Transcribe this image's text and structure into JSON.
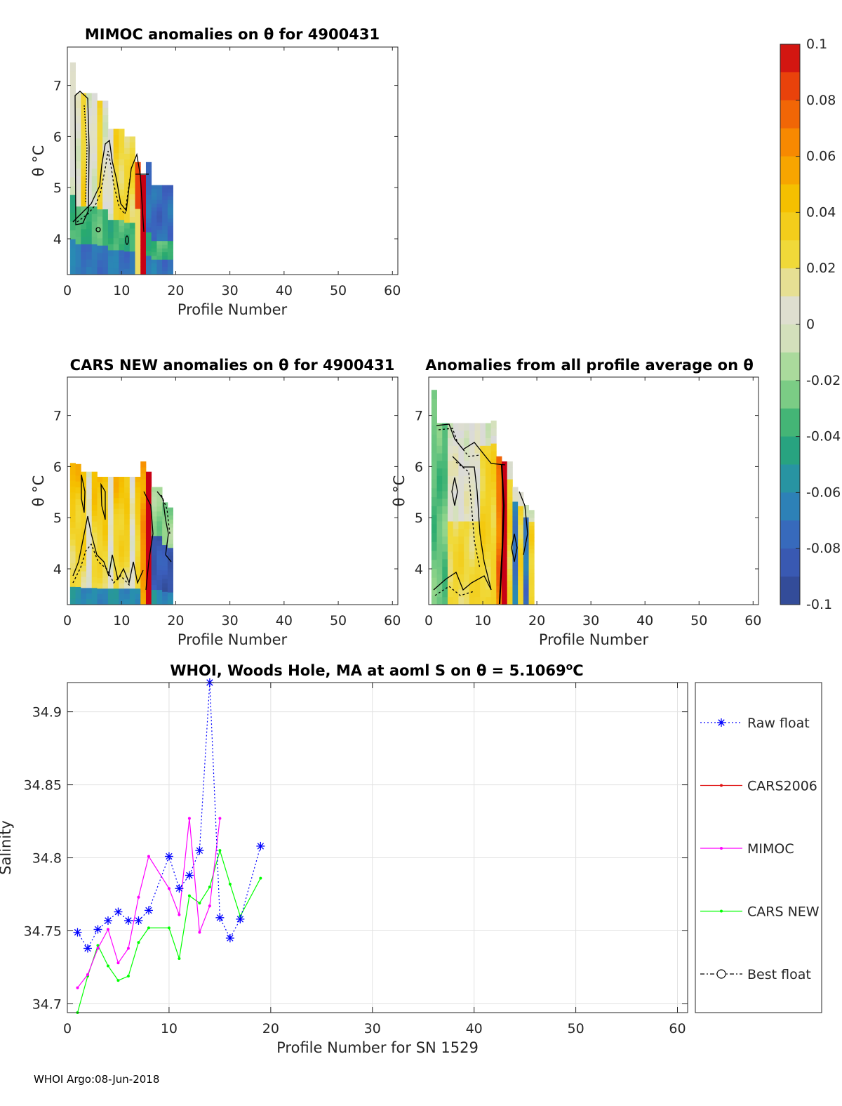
{
  "footer": "WHOI Argo:08-Jun-2018",
  "colorbar": {
    "ticks": [
      "0.1",
      "0.08",
      "0.06",
      "0.04",
      "0.02",
      "0",
      "-0.02",
      "-0.04",
      "-0.06",
      "-0.08",
      "-0.1"
    ],
    "range": [
      -0.1,
      0.1
    ]
  },
  "chart_data": [
    {
      "type": "heatmap",
      "title": "MIMOC anomalies on θ  for 4900431",
      "xlabel": "Profile Number",
      "ylabel": "θ °C",
      "xticks": [
        "0",
        "10",
        "20",
        "30",
        "40",
        "50",
        "60"
      ],
      "yticks": [
        "7",
        "6",
        "5",
        "4"
      ],
      "xlim": [
        0,
        61
      ],
      "ylim": [
        3.3,
        7.75
      ],
      "profiles": [
        1,
        2,
        3,
        4,
        5,
        6,
        7,
        8,
        9,
        10,
        11,
        12,
        13,
        14,
        15,
        16,
        17,
        18,
        19
      ],
      "theta_top": [
        7.45,
        6.85,
        6.85,
        6.85,
        6.85,
        6.7,
        6.7,
        6.15,
        6.15,
        6.15,
        6.0,
        6.0,
        5.5,
        5.25,
        5.5,
        5.05,
        5.05,
        5.05,
        5.05
      ]
    },
    {
      "type": "heatmap",
      "title": "CARS NEW anomalies on θ for 4900431",
      "xlabel": "Profile Number",
      "ylabel": "θ °C",
      "xticks": [
        "0",
        "10",
        "20",
        "30",
        "40",
        "50",
        "60"
      ],
      "yticks": [
        "7",
        "6",
        "5",
        "4"
      ],
      "xlim": [
        0,
        61
      ],
      "ylim": [
        3.3,
        7.75
      ],
      "profiles": [
        1,
        2,
        3,
        4,
        5,
        6,
        7,
        8,
        9,
        10,
        11,
        12,
        13,
        14,
        15,
        16,
        17,
        18,
        19
      ],
      "theta_top": [
        6.07,
        6.05,
        5.9,
        5.9,
        5.9,
        5.8,
        5.8,
        5.8,
        5.8,
        5.8,
        5.8,
        5.8,
        5.8,
        6.1,
        5.9,
        5.6,
        5.6,
        5.3,
        5.2
      ]
    },
    {
      "type": "heatmap",
      "title": "Anomalies from all profile average on θ",
      "xlabel": "Profile Number",
      "ylabel": "θ °C",
      "xticks": [
        "0",
        "10",
        "20",
        "30",
        "40",
        "50",
        "60"
      ],
      "yticks": [
        "7",
        "6",
        "5",
        "4"
      ],
      "xlim": [
        0,
        61
      ],
      "ylim": [
        3.3,
        7.75
      ],
      "profiles": [
        1,
        2,
        3,
        4,
        5,
        6,
        7,
        8,
        9,
        10,
        11,
        12,
        13,
        14,
        15,
        16,
        17,
        18,
        19
      ],
      "theta_top": [
        7.5,
        6.85,
        6.85,
        6.85,
        6.85,
        6.85,
        6.85,
        6.85,
        6.85,
        6.85,
        6.85,
        6.9,
        6.2,
        6.1,
        6.1,
        5.6,
        5.5,
        5.25,
        5.15
      ]
    },
    {
      "type": "line",
      "title": "WHOI, Woods Hole, MA at aoml S on θ = 5.1069°C",
      "title_prefix": "WHOI, Woods Hole, MA at aoml S on θ = 5.1069",
      "title_super": "o",
      "title_suffix": "C",
      "xlabel": "Profile Number for SN 1529",
      "ylabel": "Salinity",
      "xlim": [
        0,
        61
      ],
      "ylim": [
        34.694,
        34.92
      ],
      "xticks": [
        "0",
        "10",
        "20",
        "30",
        "40",
        "50",
        "60"
      ],
      "yticks": [
        "34.9",
        "34.85",
        "34.8",
        "34.75",
        "34.7"
      ],
      "series": [
        {
          "name": "Raw float",
          "color": "#0000ff",
          "x": [
            1,
            2,
            3,
            4,
            5,
            6,
            7,
            8,
            10,
            11,
            12,
            13,
            14,
            15,
            16,
            17,
            19
          ],
          "y": [
            34.749,
            34.738,
            34.751,
            34.757,
            34.763,
            34.757,
            34.757,
            34.764,
            34.801,
            34.779,
            34.788,
            34.805,
            34.92,
            34.759,
            34.745,
            34.758,
            34.808
          ]
        },
        {
          "name": "CARS2006",
          "color": "#e01010",
          "x": [],
          "y": []
        },
        {
          "name": "MIMOC",
          "color": "#ff00ff",
          "x": [
            1,
            2,
            3,
            4,
            5,
            6,
            7,
            8,
            10,
            11,
            12,
            13,
            14,
            15
          ],
          "y": [
            34.711,
            34.72,
            34.738,
            34.751,
            34.728,
            34.738,
            34.773,
            34.801,
            34.779,
            34.761,
            34.827,
            34.749,
            34.767,
            34.827
          ]
        },
        {
          "name": "CARS NEW",
          "color": "#00ff00",
          "x": [
            1,
            2,
            3,
            4,
            5,
            6,
            7,
            8,
            10,
            11,
            12,
            13,
            14,
            15,
            16,
            17,
            19
          ],
          "y": [
            34.694,
            34.719,
            34.74,
            34.726,
            34.716,
            34.719,
            34.742,
            34.752,
            34.752,
            34.731,
            34.774,
            34.769,
            34.78,
            34.805,
            34.782,
            34.76,
            34.786
          ]
        },
        {
          "name": "Best float",
          "color": "#000000",
          "x": [],
          "y": []
        }
      ]
    }
  ]
}
